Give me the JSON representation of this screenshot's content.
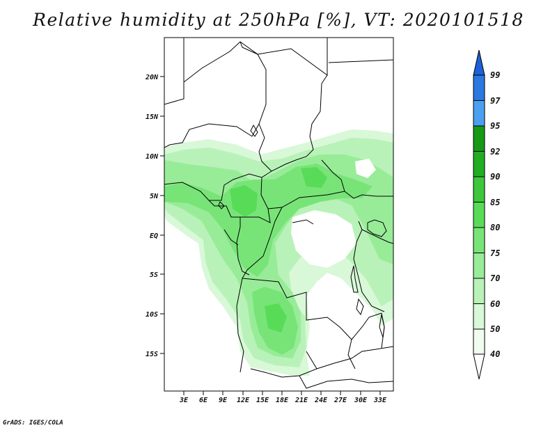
{
  "title": "Relative humidity at 250hPa [%], VT: 2020101518",
  "credit": "GrADS: IGES/COLA",
  "map": {
    "lat_labels": [
      "20N",
      "15N",
      "10N",
      "5N",
      "EQ",
      "5S",
      "10S",
      "15S"
    ],
    "lon_labels": [
      "3E",
      "6E",
      "9E",
      "12E",
      "15E",
      "18E",
      "21E",
      "24E",
      "27E",
      "30E",
      "33E"
    ]
  },
  "colorbar": {
    "levels": [
      "99",
      "97",
      "95",
      "92",
      "90",
      "85",
      "80",
      "75",
      "70",
      "60",
      "50",
      "40"
    ],
    "colors": [
      "#1e60d8",
      "#2a78e0",
      "#4aa0f0",
      "#169a16",
      "#22ae22",
      "#3cc83c",
      "#58dc58",
      "#78e478",
      "#98ec98",
      "#b8f2b8",
      "#d8f8d8",
      "#f0fcf0"
    ]
  }
}
